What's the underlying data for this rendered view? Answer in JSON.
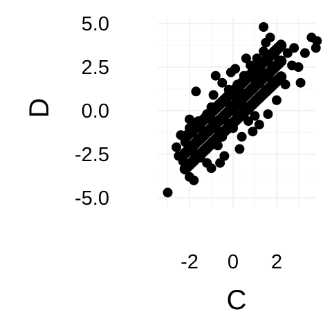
{
  "chart_data": {
    "type": "scatter",
    "xlabel": "C",
    "ylabel": "D",
    "xlim": [
      -3.0,
      3.9
    ],
    "ylim": [
      -5.0,
      5.0
    ],
    "x_ticks": [
      -2,
      0,
      2
    ],
    "x_tick_labels": [
      "-2",
      "0",
      "2"
    ],
    "y_ticks": [
      -5.0,
      -2.5,
      0.0,
      2.5,
      5.0
    ],
    "y_tick_labels": [
      "-5.0",
      "-2.5",
      "0.0",
      "2.5",
      "5.0"
    ],
    "grid": true,
    "point_color": "#000000",
    "grid_color": "#ebebeb",
    "points": [
      [
        -3.0,
        -4.7
      ],
      [
        -2.0,
        -3.8
      ],
      [
        -1.8,
        -4.0
      ],
      [
        -2.5,
        -2.6
      ],
      [
        -2.6,
        -2.1
      ],
      [
        -2.4,
        -1.4
      ],
      [
        -2.0,
        -1.0
      ],
      [
        -1.6,
        -0.6
      ],
      [
        -1.8,
        -2.4
      ],
      [
        -1.5,
        -2.7
      ],
      [
        -1.2,
        -3.0
      ],
      [
        -1.0,
        -3.3
      ],
      [
        -0.6,
        -3.0
      ],
      [
        -2.2,
        -1.8
      ],
      [
        -1.6,
        -1.6
      ],
      [
        -1.5,
        -1.0
      ],
      [
        -1.2,
        -0.2
      ],
      [
        -1.0,
        -0.5
      ],
      [
        -1.0,
        0.2
      ],
      [
        -0.8,
        -1.0
      ],
      [
        -0.7,
        -2.0
      ],
      [
        -0.5,
        -1.5
      ],
      [
        -0.4,
        -0.5
      ],
      [
        -0.3,
        0.5
      ],
      [
        -0.2,
        1.2
      ],
      [
        -0.2,
        -0.8
      ],
      [
        0.0,
        0.0
      ],
      [
        0.0,
        -1.0
      ],
      [
        0.1,
        0.8
      ],
      [
        0.2,
        1.5
      ],
      [
        0.2,
        -0.3
      ],
      [
        0.3,
        0.3
      ],
      [
        0.4,
        -1.5
      ],
      [
        0.4,
        1.0
      ],
      [
        0.5,
        2.0
      ],
      [
        0.6,
        0.2
      ],
      [
        0.7,
        -0.6
      ],
      [
        0.8,
        1.2
      ],
      [
        0.8,
        2.6
      ],
      [
        0.9,
        0.4
      ],
      [
        1.0,
        1.8
      ],
      [
        1.1,
        3.0
      ],
      [
        1.2,
        -0.8
      ],
      [
        1.2,
        0.8
      ],
      [
        1.3,
        2.2
      ],
      [
        1.4,
        3.4
      ],
      [
        1.5,
        1.2
      ],
      [
        1.6,
        2.8
      ],
      [
        1.7,
        4.2
      ],
      [
        1.8,
        1.7
      ],
      [
        1.9,
        3.2
      ],
      [
        1.6,
        -0.2
      ],
      [
        2.2,
        3.8
      ],
      [
        2.5,
        3.3
      ],
      [
        2.7,
        2.6
      ],
      [
        2.8,
        3.6
      ],
      [
        3.0,
        2.5
      ],
      [
        3.3,
        3.3
      ],
      [
        3.1,
        1.6
      ],
      [
        3.6,
        4.2
      ],
      [
        3.85,
        4.0
      ],
      [
        3.8,
        3.6
      ],
      [
        1.4,
        4.8
      ],
      [
        -1.7,
        1.1
      ],
      [
        -0.8,
        2.0
      ],
      [
        -0.1,
        2.2
      ],
      [
        2.4,
        1.5
      ],
      [
        -2.0,
        -0.5
      ],
      [
        -0.4,
        -2.6
      ],
      [
        0.3,
        -2.2
      ],
      [
        -1.2,
        -2.2
      ],
      [
        0.9,
        -1.2
      ],
      [
        -2.3,
        -2.9
      ],
      [
        0.6,
        3.0
      ],
      [
        -0.5,
        1.6
      ],
      [
        1.0,
        -0.3
      ],
      [
        2.0,
        0.6
      ],
      [
        -0.9,
        0.9
      ],
      [
        1.5,
        3.9
      ],
      [
        0.1,
        2.4
      ]
    ]
  }
}
